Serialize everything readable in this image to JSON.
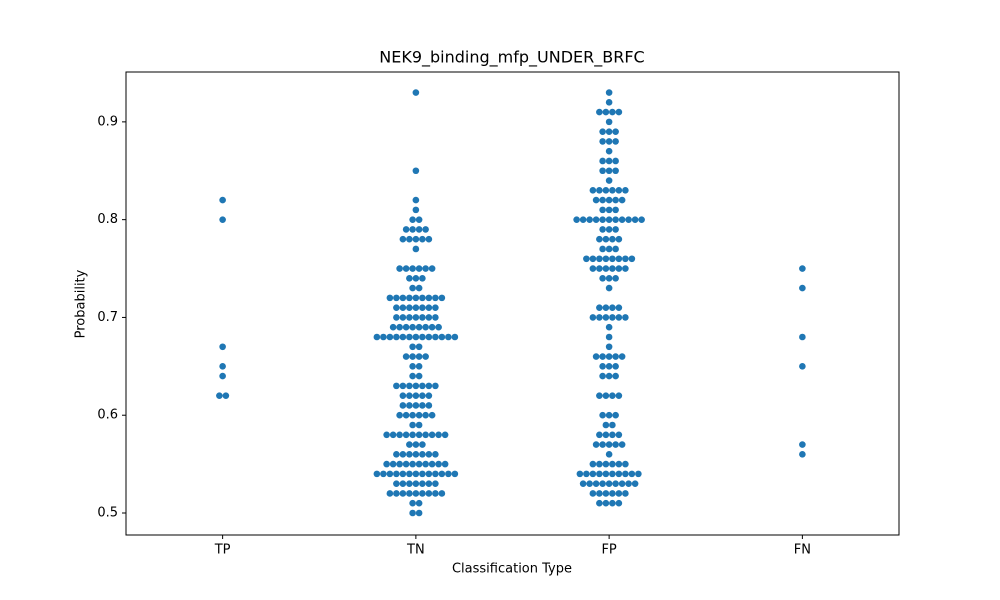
{
  "chart_data": {
    "type": "swarm",
    "title": "NEK9_binding_mfp_UNDER_BRFC",
    "x_label": "Classification Type",
    "y_label": "Probability",
    "categories": [
      "TP",
      "TN",
      "FP",
      "FN"
    ],
    "color": "#1f77b4",
    "ylim": [
      0.4775,
      0.951
    ],
    "yticks": [
      0.5,
      0.6,
      0.7,
      0.8,
      0.9
    ],
    "grid": false,
    "values": [
      [
        0.82,
        0.8,
        0.67,
        0.65,
        0.64,
        0.62,
        0.62
      ],
      [
        0.93,
        0.85,
        0.82,
        0.81,
        0.8,
        0.8,
        0.79,
        0.79,
        0.79,
        0.79,
        0.78,
        0.78,
        0.78,
        0.78,
        0.78,
        0.77,
        0.75,
        0.75,
        0.75,
        0.75,
        0.75,
        0.75,
        0.74,
        0.74,
        0.74,
        0.73,
        0.73,
        0.72,
        0.72,
        0.72,
        0.72,
        0.72,
        0.72,
        0.72,
        0.72,
        0.72,
        0.71,
        0.71,
        0.71,
        0.71,
        0.71,
        0.71,
        0.71,
        0.7,
        0.7,
        0.7,
        0.7,
        0.7,
        0.7,
        0.7,
        0.69,
        0.69,
        0.69,
        0.69,
        0.69,
        0.69,
        0.69,
        0.69,
        0.68,
        0.68,
        0.68,
        0.68,
        0.68,
        0.68,
        0.68,
        0.68,
        0.68,
        0.68,
        0.68,
        0.68,
        0.68,
        0.67,
        0.67,
        0.66,
        0.66,
        0.66,
        0.66,
        0.65,
        0.65,
        0.64,
        0.64,
        0.63,
        0.63,
        0.63,
        0.63,
        0.63,
        0.63,
        0.63,
        0.62,
        0.62,
        0.62,
        0.62,
        0.62,
        0.61,
        0.61,
        0.61,
        0.61,
        0.61,
        0.6,
        0.6,
        0.6,
        0.6,
        0.6,
        0.6,
        0.59,
        0.59,
        0.58,
        0.58,
        0.58,
        0.58,
        0.58,
        0.58,
        0.58,
        0.58,
        0.58,
        0.58,
        0.57,
        0.57,
        0.57,
        0.56,
        0.56,
        0.56,
        0.56,
        0.56,
        0.56,
        0.56,
        0.55,
        0.55,
        0.55,
        0.55,
        0.55,
        0.55,
        0.55,
        0.55,
        0.55,
        0.55,
        0.54,
        0.54,
        0.54,
        0.54,
        0.54,
        0.54,
        0.54,
        0.54,
        0.54,
        0.54,
        0.54,
        0.54,
        0.54,
        0.53,
        0.53,
        0.53,
        0.53,
        0.53,
        0.53,
        0.53,
        0.52,
        0.52,
        0.52,
        0.52,
        0.52,
        0.52,
        0.52,
        0.52,
        0.52,
        0.51,
        0.51,
        0.5,
        0.5
      ],
      [
        0.93,
        0.92,
        0.91,
        0.91,
        0.91,
        0.91,
        0.9,
        0.89,
        0.89,
        0.89,
        0.88,
        0.88,
        0.88,
        0.87,
        0.86,
        0.86,
        0.86,
        0.85,
        0.85,
        0.85,
        0.84,
        0.83,
        0.83,
        0.83,
        0.83,
        0.83,
        0.83,
        0.82,
        0.82,
        0.82,
        0.82,
        0.82,
        0.81,
        0.81,
        0.81,
        0.8,
        0.8,
        0.8,
        0.8,
        0.8,
        0.8,
        0.8,
        0.8,
        0.8,
        0.8,
        0.8,
        0.79,
        0.79,
        0.79,
        0.78,
        0.78,
        0.78,
        0.78,
        0.77,
        0.77,
        0.77,
        0.76,
        0.76,
        0.76,
        0.76,
        0.76,
        0.76,
        0.76,
        0.76,
        0.75,
        0.75,
        0.75,
        0.75,
        0.75,
        0.75,
        0.74,
        0.74,
        0.74,
        0.73,
        0.71,
        0.71,
        0.71,
        0.71,
        0.7,
        0.7,
        0.7,
        0.7,
        0.7,
        0.7,
        0.69,
        0.68,
        0.67,
        0.66,
        0.66,
        0.66,
        0.66,
        0.66,
        0.65,
        0.65,
        0.65,
        0.64,
        0.64,
        0.64,
        0.62,
        0.62,
        0.62,
        0.62,
        0.6,
        0.6,
        0.6,
        0.59,
        0.59,
        0.58,
        0.58,
        0.58,
        0.58,
        0.57,
        0.57,
        0.57,
        0.57,
        0.57,
        0.56,
        0.55,
        0.55,
        0.55,
        0.55,
        0.55,
        0.55,
        0.54,
        0.54,
        0.54,
        0.54,
        0.54,
        0.54,
        0.54,
        0.54,
        0.54,
        0.54,
        0.53,
        0.53,
        0.53,
        0.53,
        0.53,
        0.53,
        0.53,
        0.53,
        0.53,
        0.52,
        0.52,
        0.52,
        0.52,
        0.52,
        0.52,
        0.51,
        0.51,
        0.51,
        0.51
      ],
      [
        0.75,
        0.73,
        0.68,
        0.65,
        0.57,
        0.56
      ]
    ]
  }
}
